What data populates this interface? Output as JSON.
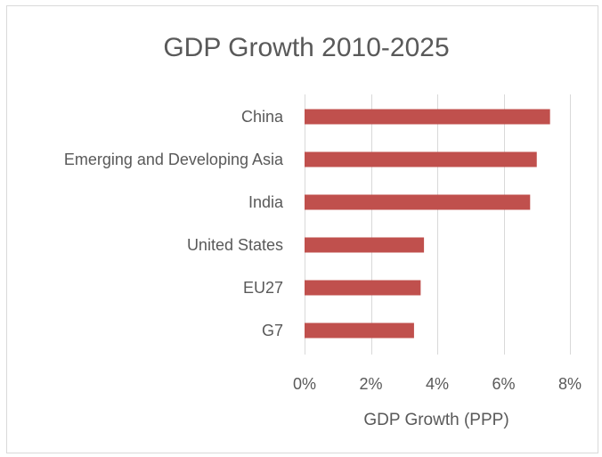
{
  "chart_data": {
    "type": "bar",
    "orientation": "horizontal",
    "title": "GDP Growth 2010-2025",
    "xlabel": "GDP Growth (PPP)",
    "ylabel": "",
    "categories": [
      "China",
      "Emerging and Developing Asia",
      "India",
      "United States",
      "EU27",
      "G7"
    ],
    "values": [
      7.4,
      7.0,
      6.8,
      3.6,
      3.5,
      3.3
    ],
    "value_unit": "%",
    "xlim": [
      0,
      8
    ],
    "x_ticks": [
      "0%",
      "2%",
      "4%",
      "6%",
      "8%"
    ],
    "grid": "vertical",
    "legend": "none",
    "bar_color": "#c0504d"
  }
}
